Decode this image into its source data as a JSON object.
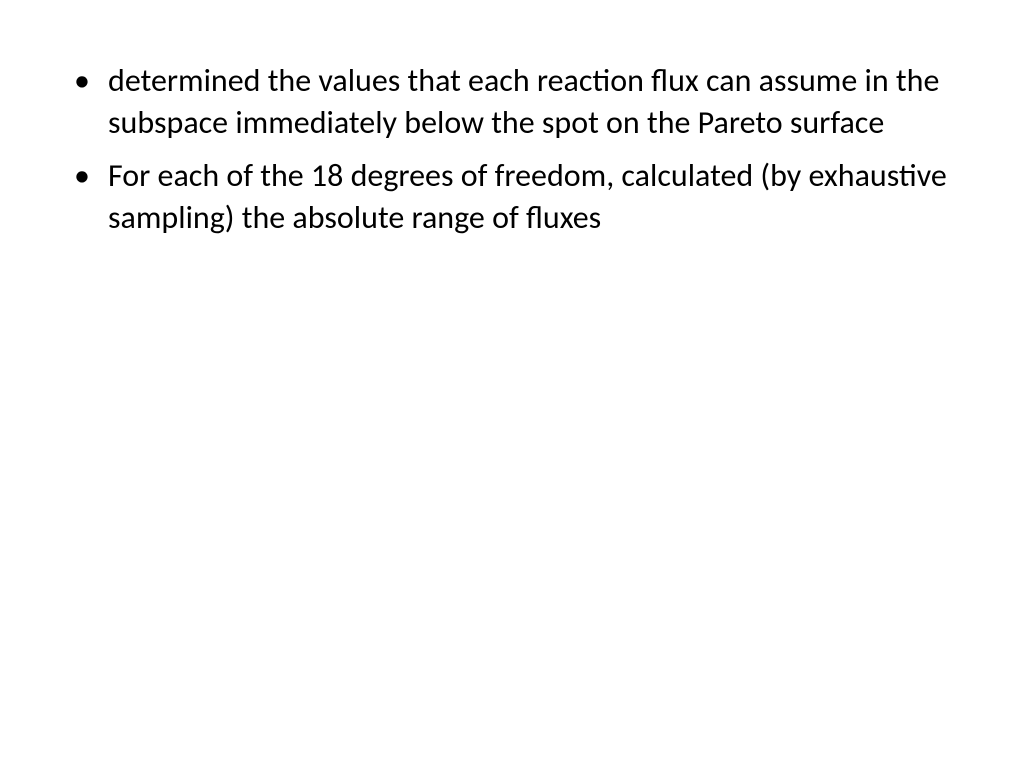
{
  "slide": {
    "background_color": "#ffffff",
    "text_color": "#000000",
    "font_family": "Calibri",
    "font_size_pt": 28,
    "bullets": [
      {
        "text": "determined the values that each reaction flux can assume in the subspace immediately below the spot on the Pareto surface"
      },
      {
        "text": "For each of the 18 degrees of freedom, calculated (by exhaustive sampling) the absolute range of fluxes"
      }
    ]
  }
}
